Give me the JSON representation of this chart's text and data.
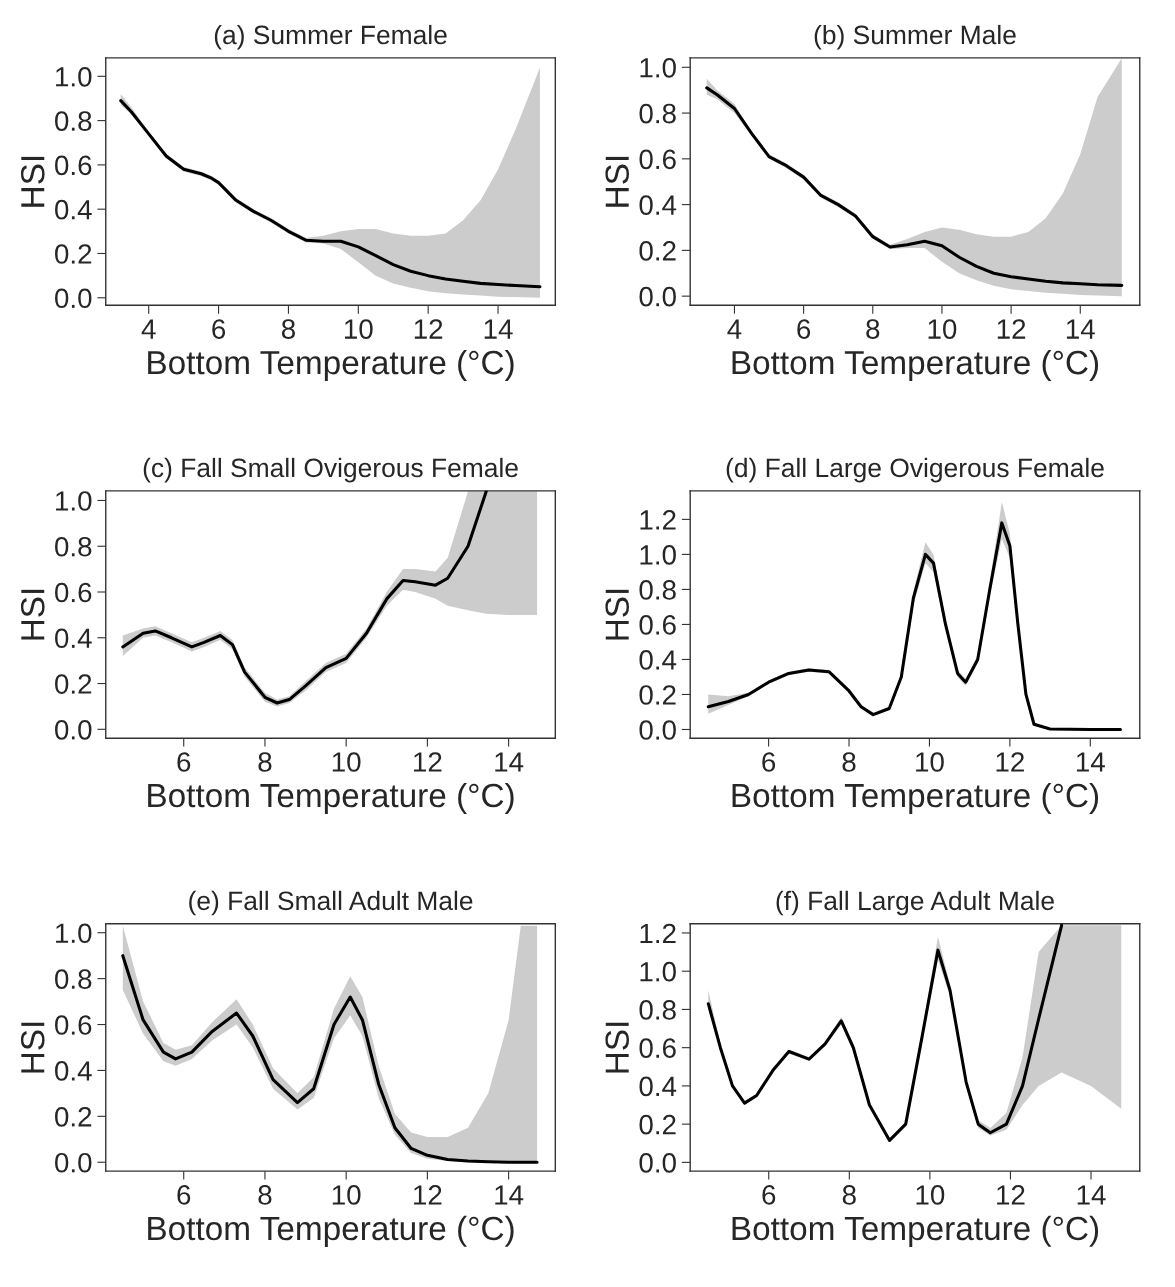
{
  "chart_data": [
    {
      "type": "line",
      "title": "(a) Summer Female",
      "xlabel": "Bottom Temperature (°C)",
      "ylabel": "HSI",
      "xlim": [
        2.77,
        15.64
      ],
      "ylim": [
        -0.034,
        1.083
      ],
      "xticks": [
        4,
        6,
        8,
        10,
        12,
        14
      ],
      "yticks": [
        {
          "value": 0,
          "label": "0.0"
        },
        {
          "value": 0.2,
          "label": "0.2"
        },
        {
          "value": 0.4,
          "label": "0.4"
        },
        {
          "value": 0.6,
          "label": "0.6"
        },
        {
          "value": 0.8,
          "label": "0.8"
        },
        {
          "value": 1,
          "label": "1.0"
        }
      ],
      "series": [
        {
          "color": "#000000",
          "x": [
            3.2,
            3.5,
            4,
            4.5,
            5,
            5.5,
            5.8,
            6,
            6.5,
            7,
            7.5,
            8,
            8.5,
            9,
            9.5,
            10,
            10.5,
            11,
            11.5,
            12,
            12.5,
            13,
            13.5,
            14,
            14.5,
            15.2
          ],
          "values": [
            0.89,
            0.84,
            0.74,
            0.64,
            0.58,
            0.56,
            0.54,
            0.52,
            0.44,
            0.39,
            0.35,
            0.3,
            0.26,
            0.255,
            0.255,
            0.23,
            0.19,
            0.15,
            0.12,
            0.1,
            0.085,
            0.075,
            0.065,
            0.06,
            0.055,
            0.05
          ],
          "lower": [
            0.87,
            0.83,
            0.73,
            0.63,
            0.57,
            0.55,
            0.53,
            0.51,
            0.43,
            0.38,
            0.34,
            0.29,
            0.25,
            0.245,
            0.22,
            0.16,
            0.1,
            0.065,
            0.045,
            0.03,
            0.02,
            0.015,
            0.01,
            0.005,
            0.003,
            0.0
          ],
          "upper": [
            0.92,
            0.86,
            0.75,
            0.65,
            0.59,
            0.57,
            0.55,
            0.53,
            0.45,
            0.4,
            0.36,
            0.31,
            0.27,
            0.28,
            0.3,
            0.31,
            0.31,
            0.29,
            0.28,
            0.28,
            0.29,
            0.35,
            0.44,
            0.58,
            0.76,
            1.04
          ]
        }
      ]
    },
    {
      "type": "line",
      "title": "(b) Summer Male",
      "xlabel": "Bottom Temperature (°C)",
      "ylabel": "HSI",
      "xlim": [
        2.72,
        15.72
      ],
      "ylim": [
        -0.04,
        1.041
      ],
      "xticks": [
        4,
        6,
        8,
        10,
        12,
        14
      ],
      "yticks": [
        {
          "value": 0,
          "label": "0.0"
        },
        {
          "value": 0.2,
          "label": "0.2"
        },
        {
          "value": 0.4,
          "label": "0.4"
        },
        {
          "value": 0.6,
          "label": "0.6"
        },
        {
          "value": 0.8,
          "label": "0.8"
        },
        {
          "value": 1,
          "label": "1.0"
        }
      ],
      "series": [
        {
          "color": "#000000",
          "x": [
            3.2,
            3.5,
            4,
            4.5,
            5,
            5.5,
            6,
            6.5,
            7,
            7.5,
            8,
            8.5,
            9,
            9.5,
            10,
            10.5,
            11,
            11.5,
            12,
            12.5,
            13,
            13.5,
            14,
            14.5,
            15.2
          ],
          "values": [
            0.91,
            0.88,
            0.82,
            0.71,
            0.61,
            0.57,
            0.52,
            0.44,
            0.4,
            0.35,
            0.26,
            0.215,
            0.225,
            0.24,
            0.22,
            0.17,
            0.13,
            0.1,
            0.085,
            0.075,
            0.065,
            0.058,
            0.054,
            0.05,
            0.047
          ],
          "lower": [
            0.88,
            0.86,
            0.8,
            0.7,
            0.6,
            0.56,
            0.51,
            0.43,
            0.39,
            0.34,
            0.25,
            0.205,
            0.21,
            0.21,
            0.15,
            0.1,
            0.07,
            0.045,
            0.03,
            0.022,
            0.015,
            0.01,
            0.005,
            0.003,
            0.0
          ],
          "upper": [
            0.95,
            0.9,
            0.84,
            0.72,
            0.62,
            0.58,
            0.53,
            0.45,
            0.41,
            0.36,
            0.27,
            0.225,
            0.25,
            0.28,
            0.3,
            0.29,
            0.27,
            0.26,
            0.26,
            0.28,
            0.34,
            0.45,
            0.62,
            0.87,
            1.04
          ]
        }
      ]
    },
    {
      "type": "line",
      "title": "(c) Fall Small Ovigerous Female",
      "xlabel": "Bottom Temperature (°C)",
      "ylabel": "HSI",
      "xlim": [
        4.08,
        15.15
      ],
      "ylim": [
        -0.039,
        1.042
      ],
      "xticks": [
        6,
        8,
        10,
        12,
        14
      ],
      "yticks": [
        {
          "value": 0,
          "label": "0.0"
        },
        {
          "value": 0.2,
          "label": "0.2"
        },
        {
          "value": 0.4,
          "label": "0.4"
        },
        {
          "value": 0.6,
          "label": "0.6"
        },
        {
          "value": 0.8,
          "label": "0.8"
        },
        {
          "value": 1,
          "label": "1.0"
        }
      ],
      "series": [
        {
          "color": "#000000",
          "x": [
            4.5,
            5,
            5.3,
            5.7,
            6.2,
            6.5,
            6.9,
            7.2,
            7.5,
            8,
            8.3,
            8.6,
            9,
            9.5,
            10,
            10.5,
            11,
            11.4,
            11.7,
            12.2,
            12.5,
            13,
            13.45,
            14,
            14.7
          ],
          "values": [
            0.36,
            0.42,
            0.43,
            0.4,
            0.36,
            0.38,
            0.41,
            0.37,
            0.25,
            0.14,
            0.115,
            0.13,
            0.19,
            0.27,
            0.31,
            0.42,
            0.57,
            0.65,
            0.645,
            0.63,
            0.66,
            0.8,
            1.04,
            null,
            null
          ],
          "lower": [
            0.32,
            0.4,
            0.41,
            0.38,
            0.34,
            0.36,
            0.39,
            0.35,
            0.23,
            0.12,
            0.1,
            0.115,
            0.17,
            0.25,
            0.29,
            0.4,
            0.54,
            0.61,
            0.6,
            0.57,
            0.54,
            0.52,
            0.505,
            0.5,
            0.5
          ],
          "upper": [
            0.41,
            0.44,
            0.45,
            0.42,
            0.38,
            0.4,
            0.43,
            0.39,
            0.27,
            0.16,
            0.13,
            0.145,
            0.21,
            0.29,
            0.33,
            0.44,
            0.6,
            0.7,
            0.7,
            0.69,
            0.75,
            1.04,
            1.04,
            1.04,
            1.04
          ]
        }
      ]
    },
    {
      "type": "line",
      "title": "(d) Fall Large Ovigerous Female",
      "xlabel": "Bottom Temperature (°C)",
      "ylabel": "HSI",
      "xlim": [
        4.05,
        15.23
      ],
      "ylim": [
        -0.05,
        1.363
      ],
      "xticks": [
        6,
        8,
        10,
        12,
        14
      ],
      "yticks": [
        {
          "value": 0,
          "label": "0.0"
        },
        {
          "value": 0.2,
          "label": "0.2"
        },
        {
          "value": 0.4,
          "label": "0.4"
        },
        {
          "value": 0.6,
          "label": "0.6"
        },
        {
          "value": 0.8,
          "label": "0.8"
        },
        {
          "value": 1,
          "label": "1.0"
        },
        {
          "value": 1.2,
          "label": "1.2"
        }
      ],
      "series": [
        {
          "color": "#000000",
          "x": [
            4.5,
            5,
            5.5,
            6,
            6.5,
            7,
            7.5,
            8,
            8.3,
            8.6,
            9,
            9.3,
            9.6,
            9.9,
            10.1,
            10.4,
            10.7,
            10.9,
            11.2,
            11.5,
            11.8,
            12,
            12.2,
            12.4,
            12.6,
            13,
            14,
            14.75
          ],
          "values": [
            0.13,
            0.16,
            0.2,
            0.27,
            0.32,
            0.34,
            0.33,
            0.22,
            0.13,
            0.085,
            0.12,
            0.3,
            0.75,
            1.0,
            0.95,
            0.6,
            0.32,
            0.27,
            0.4,
            0.8,
            1.18,
            1.05,
            0.6,
            0.2,
            0.03,
            0.003,
            0.0,
            0.0
          ],
          "lower": [
            0.09,
            0.14,
            0.19,
            0.26,
            0.31,
            0.33,
            0.32,
            0.21,
            0.12,
            0.075,
            0.11,
            0.28,
            0.71,
            0.95,
            0.9,
            0.57,
            0.3,
            0.25,
            0.38,
            0.76,
            1.09,
            0.98,
            0.56,
            0.18,
            0.02,
            0.0,
            0.0,
            0.0
          ],
          "upper": [
            0.2,
            0.19,
            0.21,
            0.28,
            0.33,
            0.35,
            0.34,
            0.23,
            0.14,
            0.095,
            0.13,
            0.32,
            0.79,
            1.07,
            1.0,
            0.63,
            0.34,
            0.29,
            0.42,
            0.84,
            1.3,
            1.12,
            0.64,
            0.22,
            0.04,
            0.006,
            0.0,
            0.0
          ]
        }
      ]
    },
    {
      "type": "line",
      "title": "(e) Fall Small Adult Male",
      "xlabel": "Bottom Temperature (°C)",
      "ylabel": "HSI",
      "xlim": [
        4.08,
        15.15
      ],
      "ylim": [
        -0.039,
        1.039
      ],
      "xticks": [
        6,
        8,
        10,
        12,
        14
      ],
      "yticks": [
        {
          "value": 0,
          "label": "0.0"
        },
        {
          "value": 0.2,
          "label": "0.2"
        },
        {
          "value": 0.4,
          "label": "0.4"
        },
        {
          "value": 0.6,
          "label": "0.6"
        },
        {
          "value": 0.8,
          "label": "0.8"
        },
        {
          "value": 1,
          "label": "1.0"
        }
      ],
      "series": [
        {
          "color": "#000000",
          "x": [
            4.5,
            5,
            5.5,
            5.8,
            6.2,
            6.7,
            7.3,
            7.7,
            8.2,
            8.8,
            9.2,
            9.7,
            10.1,
            10.4,
            10.8,
            11.2,
            11.6,
            12,
            12.5,
            13,
            13.5,
            14,
            14.3,
            14.7
          ],
          "values": [
            0.9,
            0.62,
            0.48,
            0.45,
            0.48,
            0.57,
            0.65,
            0.55,
            0.36,
            0.26,
            0.32,
            0.6,
            0.72,
            0.62,
            0.34,
            0.15,
            0.06,
            0.03,
            0.012,
            0.005,
            0.002,
            0.0,
            0.0,
            0.0
          ],
          "lower": [
            0.75,
            0.56,
            0.44,
            0.42,
            0.45,
            0.53,
            0.6,
            0.5,
            0.32,
            0.23,
            0.28,
            0.54,
            0.64,
            0.55,
            0.28,
            0.12,
            0.04,
            0.015,
            0.005,
            0.0,
            0.0,
            0.0,
            0.0,
            0.0
          ],
          "upper": [
            1.03,
            0.7,
            0.52,
            0.49,
            0.51,
            0.61,
            0.71,
            0.6,
            0.41,
            0.3,
            0.37,
            0.67,
            0.81,
            0.72,
            0.42,
            0.21,
            0.13,
            0.11,
            0.11,
            0.15,
            0.3,
            0.62,
            1.03,
            1.03
          ]
        }
      ]
    },
    {
      "type": "line",
      "title": "(f) Fall Large Adult Male",
      "xlabel": "Bottom Temperature (°C)",
      "ylabel": "HSI",
      "xlim": [
        4.05,
        15.21
      ],
      "ylim": [
        -0.046,
        1.248
      ],
      "xticks": [
        6,
        8,
        10,
        12,
        14
      ],
      "yticks": [
        {
          "value": 0,
          "label": "0.0"
        },
        {
          "value": 0.2,
          "label": "0.2"
        },
        {
          "value": 0.4,
          "label": "0.4"
        },
        {
          "value": 0.6,
          "label": "0.6"
        },
        {
          "value": 0.8,
          "label": "0.8"
        },
        {
          "value": 1,
          "label": "1.0"
        },
        {
          "value": 1.2,
          "label": "1.2"
        }
      ],
      "series": [
        {
          "color": "#000000",
          "x": [
            4.5,
            4.8,
            5.1,
            5.4,
            5.7,
            6.1,
            6.5,
            7,
            7.4,
            7.8,
            8.1,
            8.5,
            9,
            9.4,
            9.8,
            10.2,
            10.5,
            10.9,
            11.2,
            11.5,
            11.9,
            12.3,
            12.7,
            13.27,
            14,
            14.75
          ],
          "values": [
            0.83,
            0.6,
            0.4,
            0.31,
            0.35,
            0.48,
            0.58,
            0.54,
            0.62,
            0.74,
            0.6,
            0.3,
            0.115,
            0.2,
            0.65,
            1.11,
            0.9,
            0.42,
            0.2,
            0.155,
            0.2,
            0.4,
            0.75,
            1.24,
            null,
            null
          ],
          "lower": [
            0.8,
            0.58,
            0.39,
            0.3,
            0.34,
            0.47,
            0.57,
            0.53,
            0.61,
            0.72,
            0.58,
            0.29,
            0.105,
            0.19,
            0.62,
            1.06,
            0.87,
            0.4,
            0.18,
            0.14,
            0.17,
            0.3,
            0.4,
            0.47,
            0.4,
            0.28
          ],
          "upper": [
            0.9,
            0.62,
            0.41,
            0.32,
            0.36,
            0.49,
            0.59,
            0.55,
            0.63,
            0.76,
            0.62,
            0.31,
            0.125,
            0.21,
            0.68,
            1.18,
            0.93,
            0.44,
            0.22,
            0.18,
            0.26,
            0.55,
            1.1,
            1.24,
            1.24,
            1.24
          ]
        }
      ]
    }
  ]
}
